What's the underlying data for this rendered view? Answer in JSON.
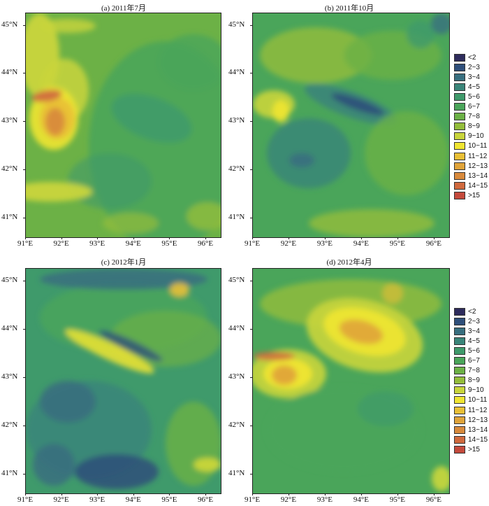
{
  "panels": [
    {
      "title": "(a) 2011年7月",
      "scheme": "a"
    },
    {
      "title": "(b) 2011年10月",
      "scheme": "b"
    },
    {
      "title": "(c) 2012年1月",
      "scheme": "c"
    },
    {
      "title": "(d) 2012年4月",
      "scheme": "d"
    }
  ],
  "lat_ticks": [
    "45°N",
    "44°N",
    "43°N",
    "42°N",
    "41°N"
  ],
  "lon_ticks": [
    "91°E",
    "92°E",
    "93°E",
    "94°E",
    "95°E",
    "96°E"
  ],
  "legend": [
    {
      "label": "<2",
      "color": "#2e2c5c"
    },
    {
      "label": "2~3",
      "color": "#2f4f7a"
    },
    {
      "label": "3~4",
      "color": "#386f7f"
    },
    {
      "label": "4~5",
      "color": "#3a8579"
    },
    {
      "label": "5~6",
      "color": "#3f9a6b"
    },
    {
      "label": "6~7",
      "color": "#4aa55a"
    },
    {
      "label": "7~8",
      "color": "#6cb146"
    },
    {
      "label": "8~9",
      "color": "#94bd3b"
    },
    {
      "label": "9~10",
      "color": "#c9d53c"
    },
    {
      "label": "10~11",
      "color": "#f0e532"
    },
    {
      "label": "11~12",
      "color": "#e9c036"
    },
    {
      "label": "12~13",
      "color": "#e0a43a"
    },
    {
      "label": "13~14",
      "color": "#d88a3c"
    },
    {
      "label": "14~15",
      "color": "#d06a3e"
    },
    {
      ">15": null,
      "label": ">15",
      "color": "#c44a3c"
    }
  ]
}
